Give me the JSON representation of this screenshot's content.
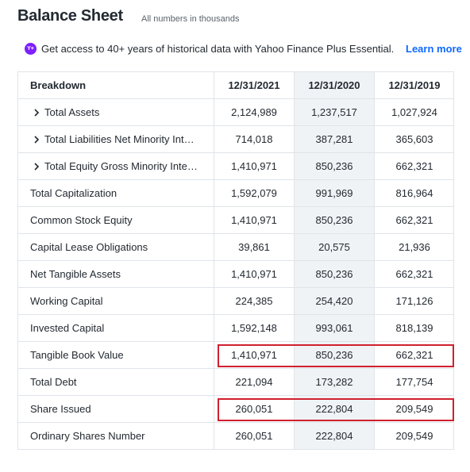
{
  "header": {
    "title": "Balance Sheet",
    "note": "All numbers in thousands"
  },
  "banner": {
    "text": "Get access to 40+ years of historical data with Yahoo Finance Plus Essential.",
    "link": "Learn more"
  },
  "table": {
    "columns": [
      "Breakdown",
      "12/31/2021",
      "12/31/2020",
      "12/31/2019"
    ],
    "rows": [
      {
        "label": "Total Assets",
        "values": [
          "2,124,989",
          "1,237,517",
          "1,027,924"
        ],
        "expandable": true
      },
      {
        "label": "Total Liabilities Net Minority Int…",
        "values": [
          "714,018",
          "387,281",
          "365,603"
        ],
        "expandable": true
      },
      {
        "label": "Total Equity Gross Minority Inte…",
        "values": [
          "1,410,971",
          "850,236",
          "662,321"
        ],
        "expandable": true
      },
      {
        "label": "Total Capitalization",
        "values": [
          "1,592,079",
          "991,969",
          "816,964"
        ]
      },
      {
        "label": "Common Stock Equity",
        "values": [
          "1,410,971",
          "850,236",
          "662,321"
        ]
      },
      {
        "label": "Capital Lease Obligations",
        "values": [
          "39,861",
          "20,575",
          "21,936"
        ]
      },
      {
        "label": "Net Tangible Assets",
        "values": [
          "1,410,971",
          "850,236",
          "662,321"
        ]
      },
      {
        "label": "Working Capital",
        "values": [
          "224,385",
          "254,420",
          "171,126"
        ]
      },
      {
        "label": "Invested Capital",
        "values": [
          "1,592,148",
          "993,061",
          "818,139"
        ]
      },
      {
        "label": "Tangible Book Value",
        "values": [
          "1,410,971",
          "850,236",
          "662,321"
        ],
        "highlight": true
      },
      {
        "label": "Total Debt",
        "values": [
          "221,094",
          "173,282",
          "177,754"
        ]
      },
      {
        "label": "Share Issued",
        "values": [
          "260,051",
          "222,804",
          "209,549"
        ],
        "highlight": true
      },
      {
        "label": "Ordinary Shares Number",
        "values": [
          "260,051",
          "222,804",
          "209,549"
        ]
      }
    ]
  }
}
